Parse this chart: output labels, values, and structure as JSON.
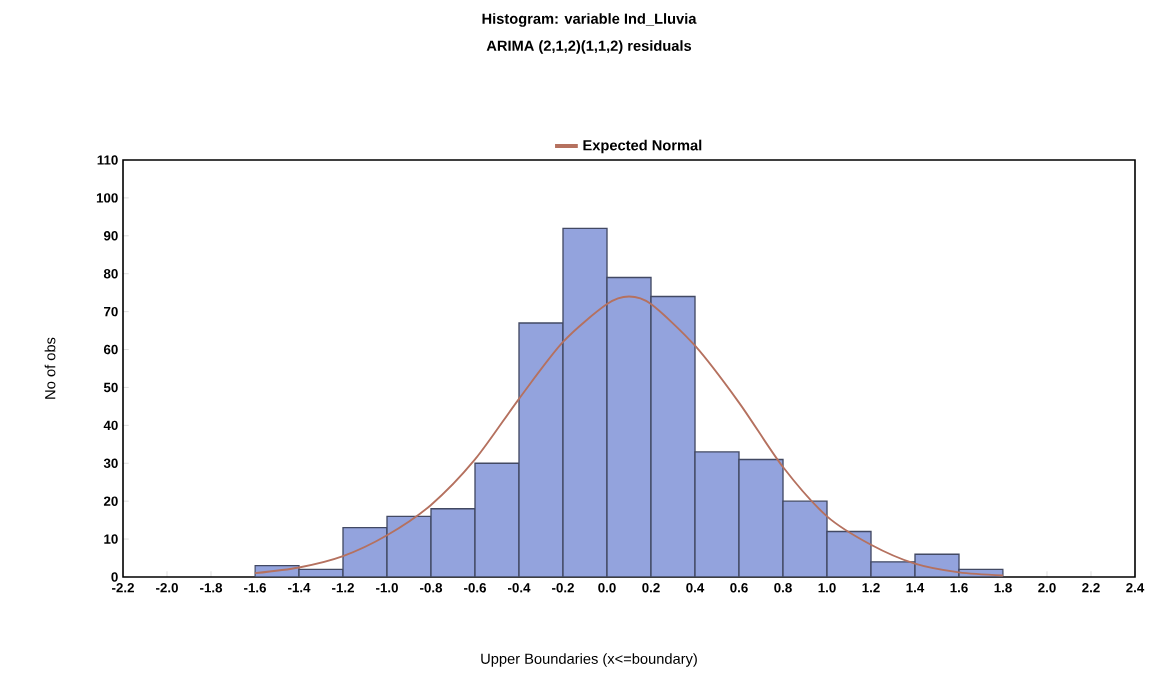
{
  "chart_data": {
    "type": "histogram",
    "title": "Histogram: variable Ind_Lluvia",
    "subtitle": "ARIMA (2,1,2)(1,1,2) residuals",
    "xlabel": "Upper Boundaries (x<=boundary)",
    "ylabel": "No of obs",
    "series": [
      {
        "color": "#93a3dd",
        "bins": [
          -1.6,
          -1.4,
          -1.2,
          -1.0,
          -0.8,
          -0.6,
          -0.4,
          -0.2,
          0.0,
          0.2,
          0.4,
          0.6,
          0.8,
          1.0,
          1.2,
          1.4,
          1.6,
          1.8
        ],
        "values": [
          3,
          2,
          13,
          16,
          18,
          30,
          67,
          92,
          79,
          74,
          33,
          31,
          20,
          12,
          4,
          6,
          2
        ]
      },
      {
        "type": "line",
        "name": "Expected Normal",
        "color": "#b5715f",
        "x": [
          -1.6,
          -1.4,
          -1.2,
          -1.0,
          -0.8,
          -0.6,
          -0.4,
          -0.2,
          0.0,
          0.1,
          0.2,
          0.4,
          0.6,
          0.8,
          1.0,
          1.2,
          1.4,
          1.6,
          1.8
        ],
        "values": [
          1,
          2.5,
          5.5,
          11,
          19,
          31,
          47,
          62,
          72,
          74,
          72,
          61,
          46,
          29,
          16,
          8.5,
          3.5,
          1.2,
          0.4
        ]
      }
    ],
    "xlim": [
      -2.2,
      2.4
    ],
    "ylim": [
      0,
      110
    ],
    "xticks": [
      {
        "value": -2.2,
        "label": "-2.2"
      },
      {
        "value": -2.0,
        "label": "-2.0"
      },
      {
        "value": -1.8,
        "label": "-1.8"
      },
      {
        "value": -1.6,
        "label": "-1.6"
      },
      {
        "value": -1.4,
        "label": "-1.4"
      },
      {
        "value": -1.2,
        "label": "-1.2"
      },
      {
        "value": -1.0,
        "label": "-1.0"
      },
      {
        "value": -0.8,
        "label": "-0.8"
      },
      {
        "value": -0.6,
        "label": "-0.6"
      },
      {
        "value": -0.4,
        "label": "-0.4"
      },
      {
        "value": -0.2,
        "label": "-0.2"
      },
      {
        "value": 0.0,
        "label": "0.0"
      },
      {
        "value": 0.2,
        "label": "0.2"
      },
      {
        "value": 0.4,
        "label": "0.4"
      },
      {
        "value": 0.6,
        "label": "0.6"
      },
      {
        "value": 0.8,
        "label": "0.8"
      },
      {
        "value": 1.0,
        "label": "1.0"
      },
      {
        "value": 1.2,
        "label": "1.2"
      },
      {
        "value": 1.4,
        "label": "1.4"
      },
      {
        "value": 1.6,
        "label": "1.6"
      },
      {
        "value": 1.8,
        "label": "1.8"
      },
      {
        "value": 2.0,
        "label": "2.0"
      },
      {
        "value": 2.2,
        "label": "2.2"
      },
      {
        "value": 2.4,
        "label": "2.4"
      }
    ],
    "yticks": [
      0,
      10,
      20,
      30,
      40,
      50,
      60,
      70,
      80,
      90,
      100,
      110
    ],
    "legend": "top",
    "grid": false
  }
}
